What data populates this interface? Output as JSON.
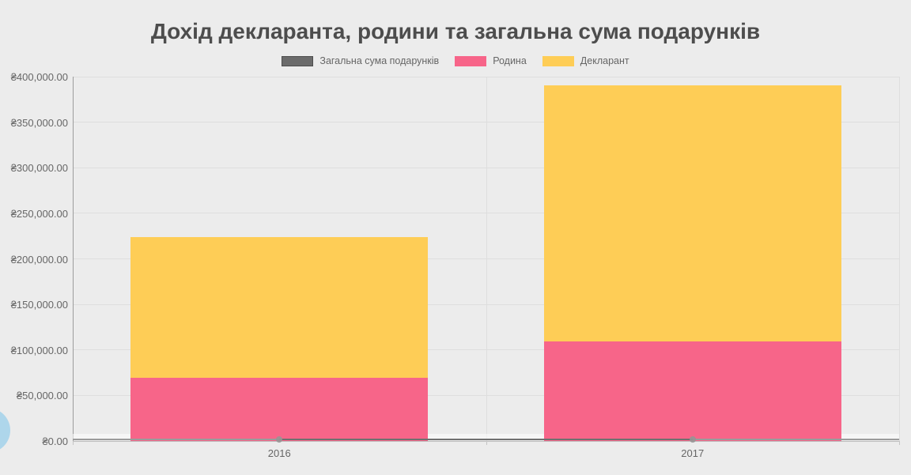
{
  "title": "Дохід декларанта, родини та загальна сума подарунків",
  "legend": [
    {
      "label": "Загальна сума подарунків",
      "color": "#6B6B6B",
      "border": "#4D4D4D"
    },
    {
      "label": "Родина",
      "color": "#F76589",
      "border": "#F76589"
    },
    {
      "label": "Декларант",
      "color": "#FECD56",
      "border": "#FECD56"
    }
  ],
  "chart_data": {
    "type": "bar",
    "stacked": true,
    "title": "Дохід декларанта, родини та загальна сума подарунків",
    "categories": [
      "2016",
      "2017"
    ],
    "series": [
      {
        "name": "Загальна сума подарунків",
        "chart": "line",
        "color": "#6B6B6B",
        "values": [
          1500,
          1500
        ]
      },
      {
        "name": "Родина",
        "chart": "bar",
        "color": "#F76589",
        "values": [
          69000,
          109000
        ]
      },
      {
        "name": "Декларант",
        "chart": "bar",
        "color": "#FECD56",
        "values": [
          154500,
          281500
        ]
      }
    ],
    "stack_totals": [
      223500,
      390500
    ],
    "xlabel": "",
    "ylabel": "",
    "ylim": [
      0,
      400000
    ],
    "y_step": 50000,
    "y_tick_labels": [
      "₴400,000.00",
      "₴350,000.00",
      "₴300,000.00",
      "₴250,000.00",
      "₴200,000.00",
      "₴150,000.00",
      "₴100,000.00",
      "₴50,000.00",
      "₴0.00"
    ],
    "x_tick_labels": [
      "2016",
      "2017"
    ],
    "grid": true,
    "legend_position": "top",
    "background": "#ECECEC"
  },
  "decor": {
    "floating_circle_color": "#AED6EB"
  }
}
